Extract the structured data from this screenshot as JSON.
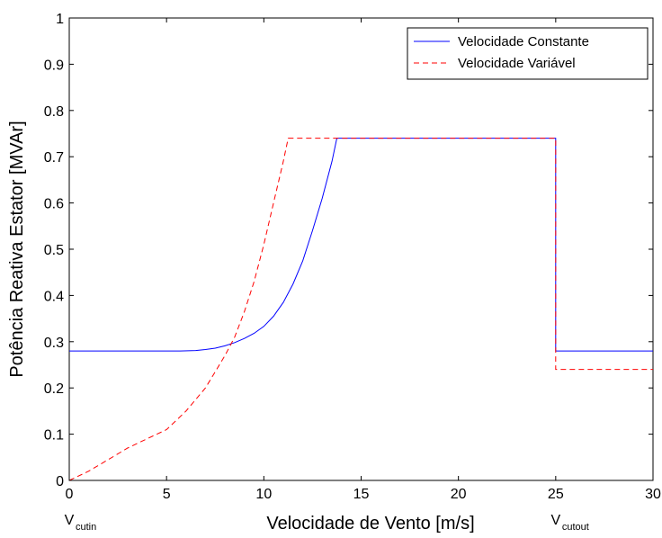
{
  "chart_data": {
    "type": "line",
    "title": "",
    "xlabel": "Velocidade de Vento [m/s]",
    "ylabel": "Potência Reativa Estator [MVAr]",
    "xlim": [
      0,
      30
    ],
    "ylim": [
      0,
      1
    ],
    "x_ticks": [
      0,
      5,
      10,
      15,
      20,
      25,
      30
    ],
    "y_ticks": [
      0,
      0.1,
      0.2,
      0.3,
      0.4,
      0.5,
      0.6,
      0.7,
      0.8,
      0.9,
      1
    ],
    "grid": false,
    "legend_position": "top-right",
    "series": [
      {
        "name": "Velocidade Constante",
        "color": "#0000ff",
        "style": "solid",
        "x": [
          0,
          5.7,
          6.5,
          7.0,
          7.5,
          8.0,
          8.5,
          9.0,
          9.5,
          10.0,
          10.5,
          11.0,
          11.5,
          12.0,
          12.5,
          13.0,
          13.5,
          13.75,
          25.0,
          25.0,
          30
        ],
        "y": [
          0.28,
          0.28,
          0.281,
          0.283,
          0.286,
          0.291,
          0.298,
          0.307,
          0.318,
          0.333,
          0.355,
          0.385,
          0.425,
          0.475,
          0.54,
          0.61,
          0.69,
          0.74,
          0.74,
          0.28,
          0.28
        ]
      },
      {
        "name": "Velocidade Variável",
        "color": "#ff0000",
        "style": "dashed",
        "x": [
          0,
          1,
          2,
          3,
          4,
          5,
          6,
          7,
          7.5,
          8,
          8.5,
          9,
          9.5,
          10,
          10.5,
          11,
          11.25,
          25.0,
          25.0,
          30
        ],
        "y": [
          0.0,
          0.02,
          0.045,
          0.07,
          0.09,
          0.11,
          0.15,
          0.2,
          0.235,
          0.27,
          0.31,
          0.365,
          0.43,
          0.51,
          0.6,
          0.69,
          0.74,
          0.74,
          0.24,
          0.24
        ]
      }
    ],
    "annotations": [
      {
        "main": "V",
        "sub": "cutin",
        "x": 0
      },
      {
        "main": "V",
        "sub": "cutout",
        "x": 25
      }
    ]
  }
}
